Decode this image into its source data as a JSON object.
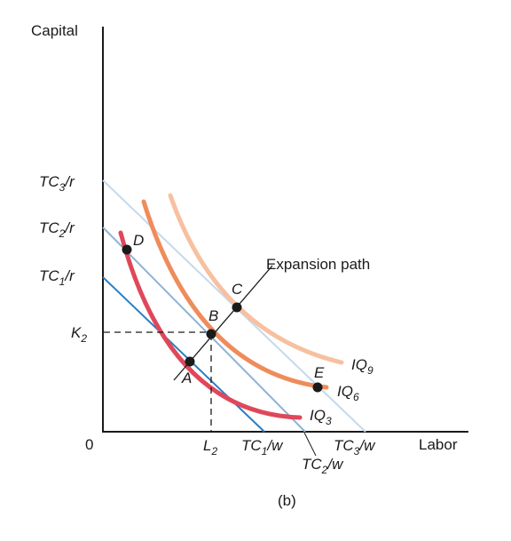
{
  "axes": {
    "y_title": "Capital",
    "x_title": "Labor",
    "origin": "0",
    "caption": "(b)"
  },
  "y_labels": {
    "tc3": {
      "main": "TC",
      "sub": "3",
      "tail": "/r"
    },
    "tc2": {
      "main": "TC",
      "sub": "2",
      "tail": "/r"
    },
    "tc1": {
      "main": "TC",
      "sub": "1",
      "tail": "/r"
    },
    "k2": {
      "main": "K",
      "sub": "2"
    }
  },
  "x_labels": {
    "l2": {
      "main": "L",
      "sub": "2"
    },
    "tc1": {
      "main": "TC",
      "sub": "1",
      "tail": "/w"
    },
    "tc2": {
      "main": "TC",
      "sub": "2",
      "tail": "/w"
    },
    "tc3": {
      "main": "TC",
      "sub": "3",
      "tail": "/w"
    }
  },
  "curves": {
    "iq9": {
      "main": "IQ",
      "sub": "9"
    },
    "iq6": {
      "main": "IQ",
      "sub": "6"
    },
    "iq3": {
      "main": "IQ",
      "sub": "3"
    }
  },
  "expansion_path": "Expansion path",
  "points": {
    "a": "A",
    "b": "B",
    "c": "C",
    "d": "D",
    "e": "E"
  },
  "colors": {
    "iq3": "#e0475a",
    "iq6": "#ef8c5c",
    "iq9": "#f7c0a0",
    "tc1": "#2a7fc4",
    "tc2": "#8fb3d6",
    "tc3": "#c5d9ec",
    "axis": "#1a1a1a"
  }
}
